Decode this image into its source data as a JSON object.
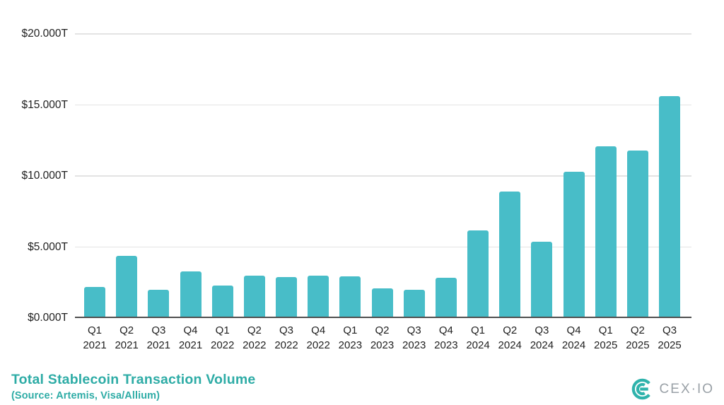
{
  "chart_data": {
    "type": "bar",
    "title": "Total Stablecoin Transaction Volume",
    "subtitle": "(Source: Artemis, Visa/Allium)",
    "unit": "$ trillions (T)",
    "categories": [
      "Q1 2021",
      "Q2 2021",
      "Q3 2021",
      "Q4 2021",
      "Q1 2022",
      "Q2 2022",
      "Q3 2022",
      "Q4 2022",
      "Q1 2023",
      "Q2 2023",
      "Q3 2023",
      "Q4 2023",
      "Q1 2024",
      "Q2 2024",
      "Q3 2024",
      "Q4 2024",
      "Q1 2025",
      "Q2 2025",
      "Q3 2025"
    ],
    "values": [
      2.2,
      4.4,
      2.0,
      3.3,
      2.3,
      3.0,
      2.9,
      3.0,
      2.95,
      2.1,
      2.0,
      2.85,
      6.15,
      8.9,
      5.35,
      10.3,
      12.1,
      11.8,
      15.6
    ],
    "xlabel": "",
    "ylabel": "",
    "ylim": [
      0,
      20
    ],
    "grid": true,
    "legend": false,
    "y_axis": {
      "tick_labels": [
        "$0.000T",
        "$5.000T",
        "$10.000T",
        "$15.000T",
        "$20.000T"
      ],
      "tick_values": [
        0,
        5,
        10,
        15,
        20
      ]
    },
    "colors": {
      "bar": "#48BDC8",
      "grid": "#E3E3E3",
      "axis_line": "#4F4F4F",
      "axis_text": "#212121",
      "accent": "#2EACA6",
      "logo_gray": "#9AA1A7",
      "logo_teal": "#2FB3AC"
    }
  },
  "branding": {
    "logo_text": "CEX·IO"
  }
}
